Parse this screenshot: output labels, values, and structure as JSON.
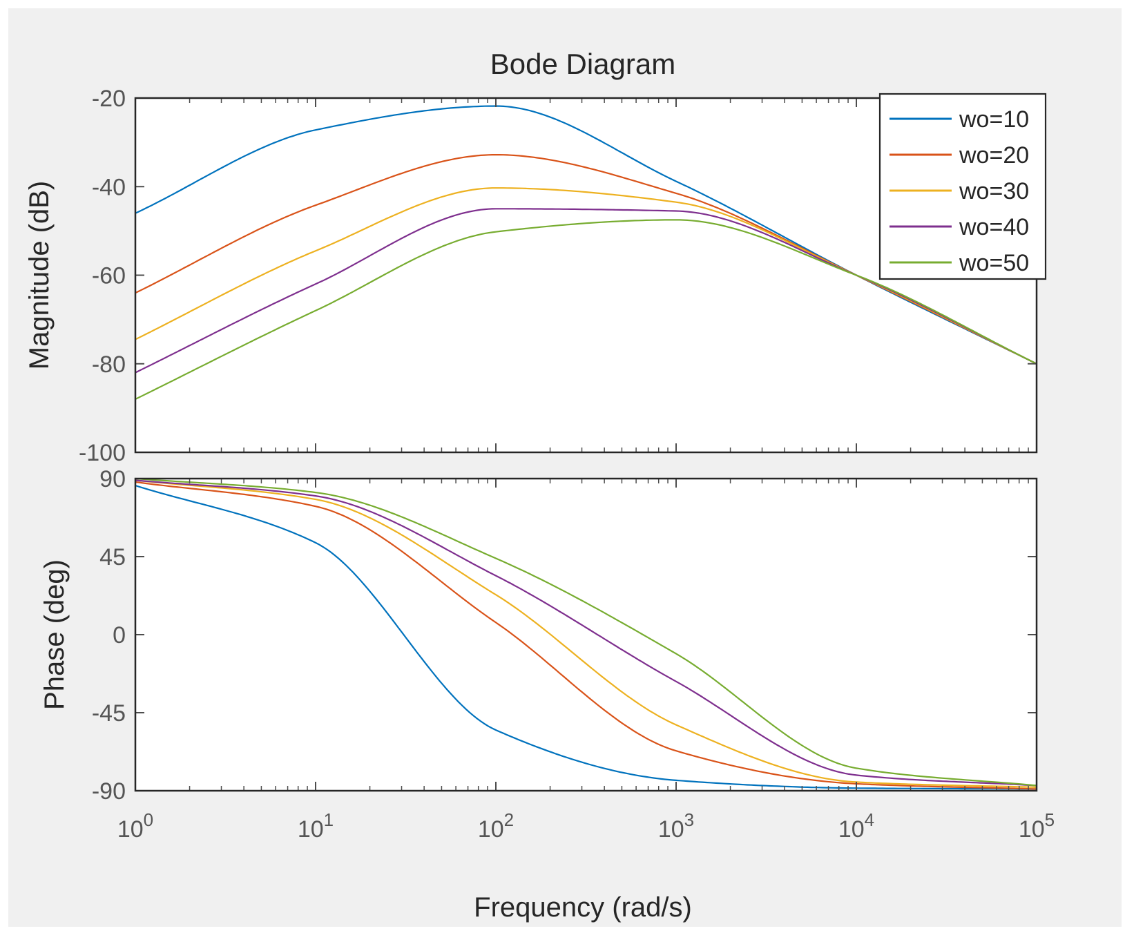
{
  "chart_data": {
    "type": "line",
    "title": "Bode Diagram",
    "xlabel": "Frequency  (rad/s)",
    "xscale": "log",
    "xlim": [
      1,
      100000
    ],
    "x_tick_labels": [
      {
        "base": "10",
        "exp": "0"
      },
      {
        "base": "10",
        "exp": "1"
      },
      {
        "base": "10",
        "exp": "2"
      },
      {
        "base": "10",
        "exp": "3"
      },
      {
        "base": "10",
        "exp": "4"
      },
      {
        "base": "10",
        "exp": "5"
      }
    ],
    "x": [
      1,
      10,
      100,
      1000,
      10000,
      100000
    ],
    "subplots": [
      {
        "name": "magnitude",
        "ylabel": "Magnitude (dB)",
        "ylim": [
          -100,
          -20
        ],
        "yticks": [
          -20,
          -40,
          -60,
          -80,
          -100
        ],
        "ytick_labels": [
          "-20",
          "-40",
          "-60",
          "-80",
          "-100"
        ],
        "series": [
          {
            "name": "wo=10",
            "values": [
              -46,
              -27.2,
              -21.8,
              -38.8,
              -60,
              -80
            ]
          },
          {
            "name": "wo=20",
            "values": [
              -64,
              -44.2,
              -32.8,
              -41.5,
              -60,
              -80
            ]
          },
          {
            "name": "wo=30",
            "values": [
              -74.5,
              -54.5,
              -40.3,
              -43.5,
              -60,
              -80
            ]
          },
          {
            "name": "wo=40",
            "values": [
              -82,
              -62,
              -45,
              -45.5,
              -60,
              -80
            ]
          },
          {
            "name": "wo=50",
            "values": [
              -88,
              -68,
              -50.2,
              -47.5,
              -60,
              -80
            ]
          }
        ]
      },
      {
        "name": "phase",
        "ylabel": "Phase (deg)",
        "ylim": [
          -90,
          90
        ],
        "yticks": [
          90,
          45,
          0,
          -45,
          -90
        ],
        "ytick_labels": [
          "90",
          "45",
          "0",
          "-45",
          "-90"
        ],
        "series": [
          {
            "name": "wo=10",
            "values": [
              86,
              53,
              -55,
              -84,
              -88.5,
              -89
            ]
          },
          {
            "name": "wo=20",
            "values": [
              88,
              74,
              7,
              -67,
              -86,
              -89
            ]
          },
          {
            "name": "wo=30",
            "values": [
              89,
              78,
              23,
              -52,
              -85,
              -88
            ]
          },
          {
            "name": "wo=40",
            "values": [
              89,
              80,
              34,
              -27,
              -81,
              -87
            ]
          },
          {
            "name": "wo=50",
            "values": [
              90,
              82,
              44,
              -11,
              -77,
              -87
            ]
          }
        ]
      }
    ],
    "legend": {
      "placement": "top-right of magnitude plot",
      "entries": [
        "wo=10",
        "wo=20",
        "wo=30",
        "wo=40",
        "wo=50"
      ]
    },
    "colors": [
      "#0072bd",
      "#d95319",
      "#edb120",
      "#7e2f8e",
      "#77ac30"
    ],
    "grid": false
  }
}
